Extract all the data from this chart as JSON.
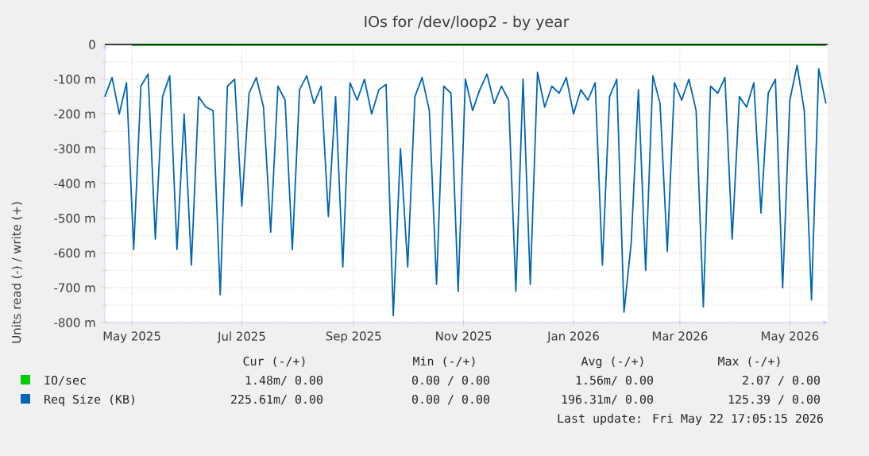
{
  "chart_data": {
    "type": "line",
    "title": "IOs for /dev/loop2 - by year",
    "ylabel": "Units read (-) / write (+)",
    "xlim": [
      "2025-04-16",
      "2026-05-22"
    ],
    "xticks": [
      {
        "value": "2025-05-01",
        "label": "May 2025"
      },
      {
        "value": "2025-07-01",
        "label": "Jul 2025"
      },
      {
        "value": "2025-09-01",
        "label": "Sep 2025"
      },
      {
        "value": "2025-11-01",
        "label": "Nov 2025"
      },
      {
        "value": "2026-01-01",
        "label": "Jan 2026"
      },
      {
        "value": "2026-03-01",
        "label": "Mar 2026"
      },
      {
        "value": "2026-05-01",
        "label": "May 2026"
      }
    ],
    "ylim": [
      -800,
      0
    ],
    "yticks": [
      {
        "value": -800,
        "label": "-800 m"
      },
      {
        "value": -700,
        "label": "-700 m"
      },
      {
        "value": -600,
        "label": "-600 m"
      },
      {
        "value": -500,
        "label": "-500 m"
      },
      {
        "value": -400,
        "label": "-400 m"
      },
      {
        "value": -300,
        "label": "-300 m"
      },
      {
        "value": -200,
        "label": "-200 m"
      },
      {
        "value": -100,
        "label": "-100 m"
      },
      0
    ],
    "grid": true,
    "legend": "bottom",
    "ref_lines": [
      {
        "axis": "y",
        "value": 0,
        "color": "#000000"
      }
    ],
    "series": [
      {
        "name": "IO/sec",
        "color": "#00cc00",
        "x": [
          "2025-05-01",
          "2025-06-01",
          "2025-07-01",
          "2025-08-01",
          "2025-09-01",
          "2025-10-01",
          "2025-11-01",
          "2025-12-01",
          "2026-01-01",
          "2026-02-01",
          "2026-03-01",
          "2026-04-01",
          "2026-05-01",
          "2026-05-21"
        ],
        "values": [
          -2,
          -2,
          -2,
          -2,
          -2,
          -2,
          -2,
          -2,
          -2,
          -2,
          -2,
          -2,
          -2,
          -2
        ]
      },
      {
        "name": "Req Size (KB)",
        "color": "#0066b3",
        "x": [
          "2025-04-16",
          "2025-04-20",
          "2025-04-24",
          "2025-04-28",
          "2025-05-02",
          "2025-05-06",
          "2025-05-10",
          "2025-05-14",
          "2025-05-18",
          "2025-05-22",
          "2025-05-26",
          "2025-05-30",
          "2025-06-03",
          "2025-06-07",
          "2025-06-11",
          "2025-06-15",
          "2025-06-19",
          "2025-06-23",
          "2025-06-27",
          "2025-07-01",
          "2025-07-05",
          "2025-07-09",
          "2025-07-13",
          "2025-07-17",
          "2025-07-21",
          "2025-07-25",
          "2025-07-29",
          "2025-08-02",
          "2025-08-06",
          "2025-08-10",
          "2025-08-14",
          "2025-08-18",
          "2025-08-22",
          "2025-08-26",
          "2025-08-30",
          "2025-09-03",
          "2025-09-07",
          "2025-09-11",
          "2025-09-15",
          "2025-09-19",
          "2025-09-23",
          "2025-09-27",
          "2025-10-01",
          "2025-10-05",
          "2025-10-09",
          "2025-10-13",
          "2025-10-17",
          "2025-10-21",
          "2025-10-25",
          "2025-10-29",
          "2025-11-02",
          "2025-11-06",
          "2025-11-10",
          "2025-11-14",
          "2025-11-18",
          "2025-11-22",
          "2025-11-26",
          "2025-11-30",
          "2025-12-04",
          "2025-12-08",
          "2025-12-12",
          "2025-12-16",
          "2025-12-20",
          "2025-12-24",
          "2025-12-28",
          "2026-01-01",
          "2026-01-05",
          "2026-01-09",
          "2026-01-13",
          "2026-01-17",
          "2026-01-21",
          "2026-01-25",
          "2026-01-29",
          "2026-02-02",
          "2026-02-06",
          "2026-02-10",
          "2026-02-14",
          "2026-02-18",
          "2026-02-22",
          "2026-02-26",
          "2026-03-02",
          "2026-03-06",
          "2026-03-10",
          "2026-03-14",
          "2026-03-18",
          "2026-03-22",
          "2026-03-26",
          "2026-03-30",
          "2026-04-03",
          "2026-04-07",
          "2026-04-11",
          "2026-04-15",
          "2026-04-19",
          "2026-04-23",
          "2026-04-27",
          "2026-05-01",
          "2026-05-05",
          "2026-05-09",
          "2026-05-13",
          "2026-05-17",
          "2026-05-21"
        ],
        "values": [
          -150,
          -95,
          -200,
          -110,
          -590,
          -120,
          -85,
          -560,
          -150,
          -90,
          -590,
          -200,
          -635,
          -150,
          -180,
          -190,
          -720,
          -120,
          -100,
          -465,
          -140,
          -95,
          -180,
          -540,
          -120,
          -160,
          -590,
          -130,
          -90,
          -170,
          -120,
          -495,
          -150,
          -640,
          -110,
          -160,
          -100,
          -200,
          -130,
          -115,
          -780,
          -300,
          -640,
          -150,
          -95,
          -190,
          -690,
          -120,
          -140,
          -710,
          -100,
          -190,
          -130,
          -85,
          -170,
          -120,
          -160,
          -710,
          -100,
          -690,
          -80,
          -180,
          -120,
          -140,
          -95,
          -200,
          -130,
          -160,
          -110,
          -635,
          -150,
          -100,
          -770,
          -570,
          -130,
          -650,
          -90,
          -170,
          -595,
          -110,
          -160,
          -100,
          -190,
          -755,
          -120,
          -140,
          -95,
          -560,
          -150,
          -180,
          -110,
          -485,
          -140,
          -100,
          -700,
          -160,
          -60,
          -190,
          -735,
          -70,
          -170
        ]
      }
    ],
    "annotations": [
      "Cur (-/+)",
      "Min (-/+)",
      "Avg (-/+)",
      "Max (-/+)",
      "1.48m/ 0.00",
      "0.00 / 0.00",
      "1.56m/ 0.00",
      "2.07 / 0.00",
      "225.61m/ 0.00",
      "0.00 / 0.00",
      "196.31m/ 0.00",
      "125.39 / 0.00",
      "Last update: Fri May 22 17:05:15 2026"
    ]
  }
}
